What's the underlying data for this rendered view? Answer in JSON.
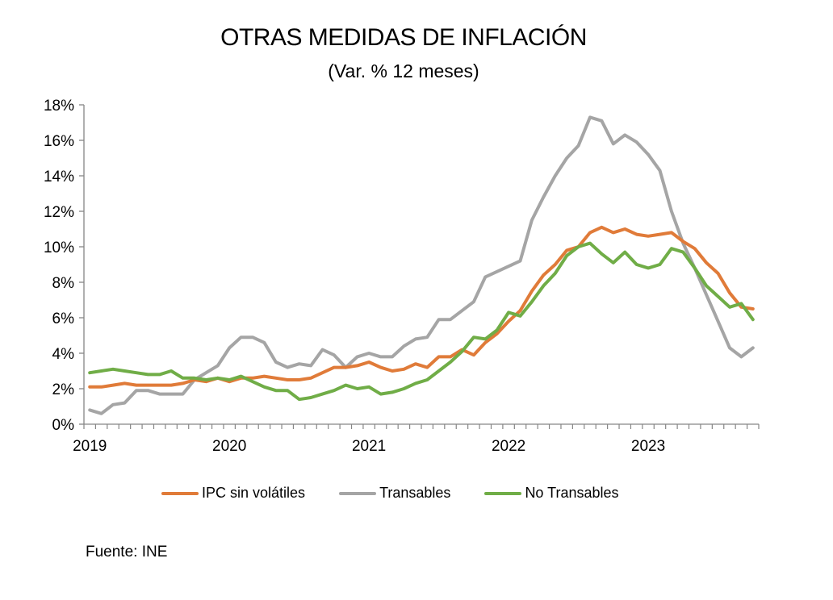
{
  "chart_data": {
    "type": "line",
    "title": "OTRAS MEDIDAS DE INFLACIÓN",
    "subtitle": "(Var. % 12 meses)",
    "xlabel": "",
    "ylabel": "",
    "ylim": [
      0,
      18
    ],
    "yticks": [
      "0%",
      "2%",
      "4%",
      "6%",
      "8%",
      "10%",
      "12%",
      "14%",
      "16%",
      "18%"
    ],
    "ytick_values": [
      0,
      2,
      4,
      6,
      8,
      10,
      12,
      14,
      16,
      18
    ],
    "x_start": "2019-01",
    "x_frequency": "monthly",
    "x_count": 58,
    "xtick_labels": [
      {
        "label": "2019",
        "index": 0
      },
      {
        "label": "2020",
        "index": 12
      },
      {
        "label": "2021",
        "index": 24
      },
      {
        "label": "2022",
        "index": 36
      },
      {
        "label": "2023",
        "index": 48
      }
    ],
    "grid": false,
    "legend_position": "bottom",
    "series": [
      {
        "name": "IPC sin volátiles",
        "color": "#E07B39",
        "values": [
          2.1,
          2.1,
          2.2,
          2.3,
          2.2,
          2.2,
          2.2,
          2.2,
          2.3,
          2.5,
          2.4,
          2.6,
          2.4,
          2.6,
          2.6,
          2.7,
          2.6,
          2.5,
          2.5,
          2.6,
          2.9,
          3.2,
          3.2,
          3.3,
          3.5,
          3.2,
          3.0,
          3.1,
          3.4,
          3.2,
          3.8,
          3.8,
          4.2,
          3.9,
          4.6,
          5.1,
          5.8,
          6.4,
          7.5,
          8.4,
          9.0,
          9.8,
          10.0,
          10.8,
          11.1,
          10.8,
          11.0,
          10.7,
          10.6,
          10.7,
          10.8,
          10.3,
          9.9,
          9.1,
          8.5,
          7.4,
          6.6,
          6.5
        ]
      },
      {
        "name": "Transables",
        "color": "#A5A5A5",
        "values": [
          0.8,
          0.6,
          1.1,
          1.2,
          1.9,
          1.9,
          1.7,
          1.7,
          1.7,
          2.5,
          2.9,
          3.3,
          4.3,
          4.9,
          4.9,
          4.6,
          3.5,
          3.2,
          3.4,
          3.3,
          4.2,
          3.9,
          3.2,
          3.8,
          4.0,
          3.8,
          3.8,
          4.4,
          4.8,
          4.9,
          5.9,
          5.9,
          6.4,
          6.9,
          8.3,
          8.6,
          8.9,
          9.2,
          11.5,
          12.8,
          14.0,
          15.0,
          15.7,
          17.3,
          17.1,
          15.8,
          16.3,
          15.9,
          15.2,
          14.3,
          12.0,
          10.2,
          8.8,
          7.3,
          5.8,
          4.3,
          3.8,
          4.3
        ]
      },
      {
        "name": "No Transables",
        "color": "#70AD47",
        "values": [
          2.9,
          3.0,
          3.1,
          3.0,
          2.9,
          2.8,
          2.8,
          3.0,
          2.6,
          2.6,
          2.5,
          2.6,
          2.5,
          2.7,
          2.4,
          2.1,
          1.9,
          1.9,
          1.4,
          1.5,
          1.7,
          1.9,
          2.2,
          2.0,
          2.1,
          1.7,
          1.8,
          2.0,
          2.3,
          2.5,
          3.0,
          3.5,
          4.1,
          4.9,
          4.8,
          5.3,
          6.3,
          6.1,
          6.9,
          7.8,
          8.5,
          9.5,
          10.0,
          10.2,
          9.6,
          9.1,
          9.7,
          9.0,
          8.8,
          9.0,
          9.9,
          9.7,
          8.8,
          7.8,
          7.2,
          6.6,
          6.8,
          5.9
        ]
      }
    ]
  },
  "source": "Fuente: INE"
}
